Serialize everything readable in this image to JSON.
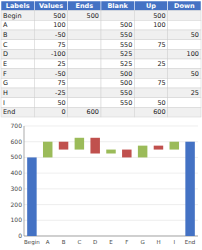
{
  "chart_data": {
    "type": "bar",
    "stacked": true,
    "categories": [
      "Begin",
      "A",
      "B",
      "C",
      "D",
      "E",
      "F",
      "G",
      "H",
      "I",
      "End"
    ],
    "series": [
      {
        "name": "Blank",
        "values": [
          0,
          500,
          550,
          550,
          525,
          525,
          500,
          500,
          550,
          550,
          0
        ]
      },
      {
        "name": "Up",
        "values": [
          500,
          100,
          0,
          75,
          0,
          25,
          0,
          75,
          0,
          50,
          600
        ],
        "colors": [
          "#4472c4",
          "#9bbb59",
          "#9bbb59",
          "#9bbb59",
          "#9bbb59",
          "#9bbb59",
          "#9bbb59",
          "#9bbb59",
          "#9bbb59",
          "#9bbb59",
          "#4472c4"
        ]
      },
      {
        "name": "Down",
        "values": [
          0,
          0,
          50,
          0,
          100,
          0,
          50,
          0,
          25,
          0,
          0
        ],
        "color": "#c0504d"
      }
    ],
    "ylim": [
      0,
      700
    ],
    "yticks": [
      0,
      100,
      200,
      300,
      400,
      500,
      600,
      700
    ],
    "grid": true
  },
  "table": {
    "color": "#4472c4",
    "columns": [
      "Labels",
      "Values",
      "Ends",
      "Blank",
      "Up",
      "Down"
    ],
    "rows": [
      [
        "Begin",
        500,
        500,
        null,
        500,
        null
      ],
      [
        "A",
        100,
        null,
        500,
        100,
        null
      ],
      [
        "B",
        -50,
        null,
        550,
        null,
        50
      ],
      [
        "C",
        75,
        null,
        550,
        75,
        null
      ],
      [
        "D",
        -100,
        null,
        525,
        null,
        100
      ],
      [
        "E",
        25,
        null,
        525,
        25,
        null
      ],
      [
        "F",
        -50,
        null,
        500,
        null,
        50
      ],
      [
        "G",
        75,
        null,
        500,
        75,
        null
      ],
      [
        "H",
        -25,
        null,
        550,
        null,
        25
      ],
      [
        "I",
        50,
        null,
        550,
        50,
        null
      ],
      [
        "End",
        0,
        600,
        null,
        600,
        null
      ]
    ]
  }
}
